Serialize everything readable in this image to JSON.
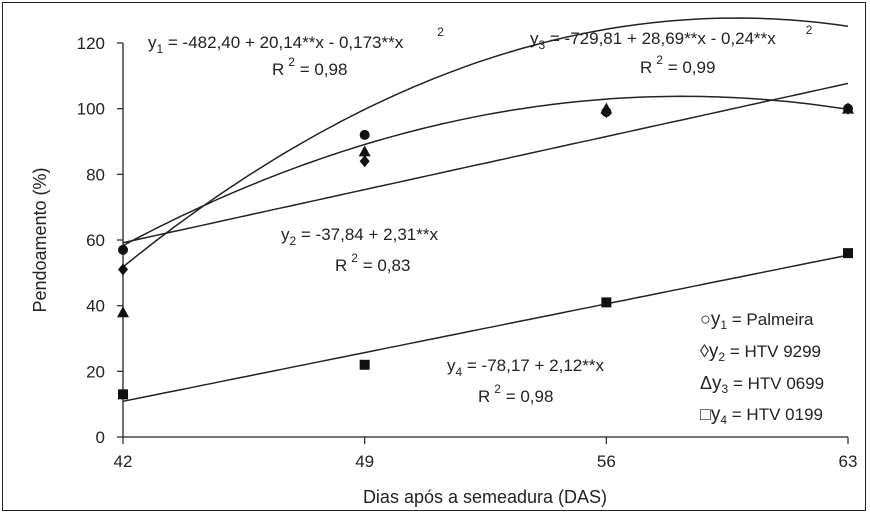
{
  "chart_data": {
    "type": "scatter",
    "xlabel": "Dias após a semeadura (DAS)",
    "ylabel": "Pendoamento (%)",
    "x_ticks": [
      "42",
      "49",
      "56",
      "63"
    ],
    "y_ticks": [
      "0",
      "20",
      "40",
      "60",
      "80",
      "100",
      "120"
    ],
    "xlim": [
      42,
      63
    ],
    "ylim": [
      0,
      120
    ],
    "grid": false,
    "legend_position": "bottom-right",
    "series": [
      {
        "name": "y1 = Palmeira",
        "marker": "circle",
        "x": [
          42,
          49,
          56,
          63
        ],
        "y": [
          57,
          92,
          99,
          100
        ],
        "fit": {
          "b0": -482.4,
          "b1": 20.14,
          "b2": -0.173
        }
      },
      {
        "name": "y2 = HTV 9299",
        "marker": "diamond",
        "x": [
          42,
          49,
          56,
          63
        ],
        "y": [
          51,
          84,
          99,
          100
        ],
        "fit": {
          "b0": -37.84,
          "b1": 2.31,
          "b2": 0
        }
      },
      {
        "name": "y3 = HTV 0699",
        "marker": "triangle",
        "x": [
          42,
          49,
          56,
          63
        ],
        "y": [
          38,
          87,
          100,
          100
        ],
        "fit": {
          "b0": -729.81,
          "b1": 28.69,
          "b2": -0.24
        }
      },
      {
        "name": "y4 = HTV 0199",
        "marker": "square",
        "x": [
          42,
          49,
          56,
          63
        ],
        "y": [
          13,
          22,
          41,
          56
        ],
        "fit": {
          "b0": -78.17,
          "b1": 2.12,
          "b2": 0
        }
      }
    ],
    "annotations": {
      "eq1": {
        "y": "y",
        "sub": "1",
        "rest": " = -482,40 +   20,14**x - 0,173**x",
        "sup": "2",
        "r2": "R",
        "r2sup": "2",
        "r2val": " = 0,98"
      },
      "eq2": {
        "y": "y",
        "sub": "2",
        "rest": " = -37,84 + 2,31**x",
        "r2": "R",
        "r2sup": "2",
        "r2val": " = 0,83"
      },
      "eq3": {
        "y": "y",
        "sub": "3",
        "rest": " = -729,81 + 28,69**x - 0,24**x",
        "sup": "2",
        "r2": "R",
        "r2sup": "2",
        "r2val": " = 0,99"
      },
      "eq4": {
        "y": "y",
        "sub": "4",
        "rest": " = -78,17 + 2,12**x",
        "r2": "R",
        "r2sup": "2",
        "r2val": " = 0,98"
      }
    },
    "legend": [
      {
        "symbol": "○",
        "y": "y",
        "sub": "1",
        "label": " = Palmeira"
      },
      {
        "symbol": "◊",
        "y": "y",
        "sub": "2",
        "label": " = HTV 9299"
      },
      {
        "symbol": "Δ",
        "y": "y",
        "sub": "3",
        "label": " = HTV 0699"
      },
      {
        "symbol": "□",
        "y": "y",
        "sub": "4",
        "label": " =  HTV  0199"
      }
    ]
  }
}
